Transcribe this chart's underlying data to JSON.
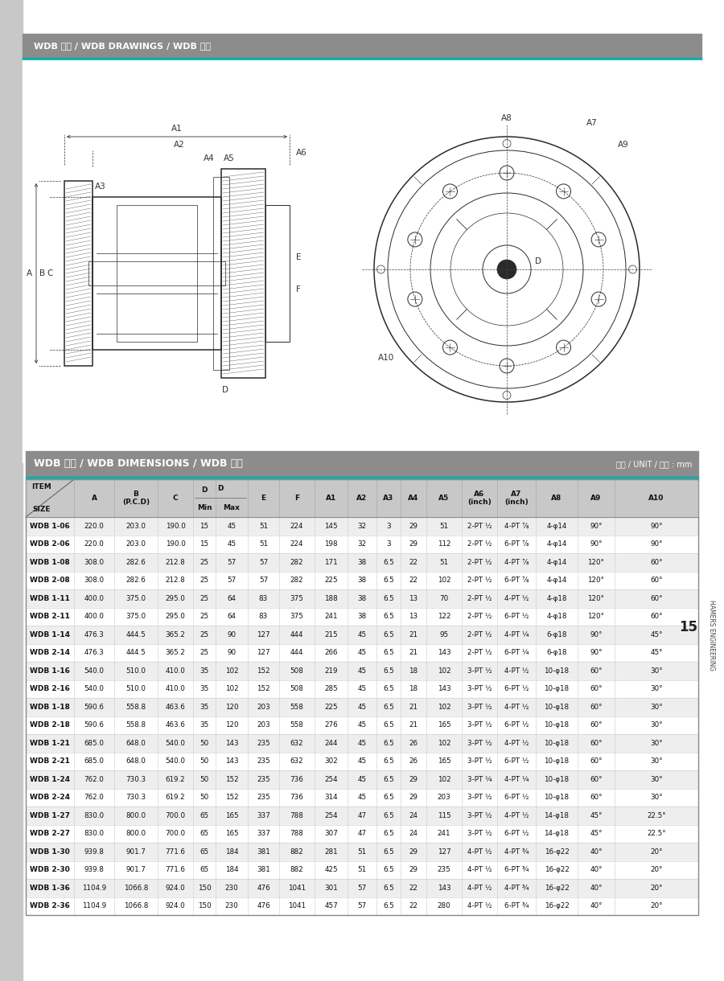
{
  "title_drawing": "WDB 도면 / WDB DRAWINGS / WDB 图纸",
  "title_dim": "WDB 치수 / WDB DIMENSIONS / WDB 尺寸",
  "unit_text": "단위 / UNIT / 单位 : mm",
  "page_num": "15",
  "side_text": "HAMERS ENGINEERING",
  "header_gray": "#8c8c8c",
  "teal_line": "#00b0a8",
  "table_header_bg": "#c8c8c8",
  "alt_row_bg": "#eeeeee",
  "white_row_bg": "#ffffff",
  "bg_color": "#ffffff",
  "left_stripe": "#d0d0d0",
  "rows": [
    [
      "WDB 1-06",
      "220.0",
      "203.0",
      "190.0",
      "15",
      "45",
      "51",
      "224",
      "145",
      "32",
      "3",
      "29",
      "51",
      "2-PT ½",
      "4-PT ⅞",
      "4-φ14",
      "90°",
      "90°"
    ],
    [
      "WDB 2-06",
      "220.0",
      "203.0",
      "190.0",
      "15",
      "45",
      "51",
      "224",
      "198",
      "32",
      "3",
      "29",
      "112",
      "2-PT ½",
      "6-PT ⅞",
      "4-φ14",
      "90°",
      "90°"
    ],
    [
      "WDB 1-08",
      "308.0",
      "282.6",
      "212.8",
      "25",
      "57",
      "57",
      "282",
      "171",
      "38",
      "6.5",
      "22",
      "51",
      "2-PT ½",
      "4-PT ⅞",
      "4-φ14",
      "120°",
      "60°"
    ],
    [
      "WDB 2-08",
      "308.0",
      "282.6",
      "212.8",
      "25",
      "57",
      "57",
      "282",
      "225",
      "38",
      "6.5",
      "22",
      "102",
      "2-PT ½",
      "6-PT ⅞",
      "4-φ14",
      "120°",
      "60°"
    ],
    [
      "WDB 1-11",
      "400.0",
      "375.0",
      "295.0",
      "25",
      "64",
      "83",
      "375",
      "188",
      "38",
      "6.5",
      "13",
      "70",
      "2-PT ½",
      "4-PT ½",
      "4-φ18",
      "120°",
      "60°"
    ],
    [
      "WDB 2-11",
      "400.0",
      "375.0",
      "295.0",
      "25",
      "64",
      "83",
      "375",
      "241",
      "38",
      "6.5",
      "13",
      "122",
      "2-PT ½",
      "6-PT ½",
      "4-φ18",
      "120°",
      "60°"
    ],
    [
      "WDB 1-14",
      "476.3",
      "444.5",
      "365.2",
      "25",
      "90",
      "127",
      "444",
      "215",
      "45",
      "6.5",
      "21",
      "95",
      "2-PT ½",
      "4-PT ¼",
      "6-φ18",
      "90°",
      "45°"
    ],
    [
      "WDB 2-14",
      "476.3",
      "444.5",
      "365.2",
      "25",
      "90",
      "127",
      "444",
      "266",
      "45",
      "6.5",
      "21",
      "143",
      "2-PT ½",
      "6-PT ¼",
      "6-φ18",
      "90°",
      "45°"
    ],
    [
      "WDB 1-16",
      "540.0",
      "510.0",
      "410.0",
      "35",
      "102",
      "152",
      "508",
      "219",
      "45",
      "6.5",
      "18",
      "102",
      "3-PT ½",
      "4-PT ½",
      "10-φ18",
      "60°",
      "30°"
    ],
    [
      "WDB 2-16",
      "540.0",
      "510.0",
      "410.0",
      "35",
      "102",
      "152",
      "508",
      "285",
      "45",
      "6.5",
      "18",
      "143",
      "3-PT ½",
      "6-PT ½",
      "10-φ18",
      "60°",
      "30°"
    ],
    [
      "WDB 1-18",
      "590.6",
      "558.8",
      "463.6",
      "35",
      "120",
      "203",
      "558",
      "225",
      "45",
      "6.5",
      "21",
      "102",
      "3-PT ½",
      "4-PT ½",
      "10-φ18",
      "60°",
      "30°"
    ],
    [
      "WDB 2-18",
      "590.6",
      "558.8",
      "463.6",
      "35",
      "120",
      "203",
      "558",
      "276",
      "45",
      "6.5",
      "21",
      "165",
      "3-PT ½",
      "6-PT ½",
      "10-φ18",
      "60°",
      "30°"
    ],
    [
      "WDB 1-21",
      "685.0",
      "648.0",
      "540.0",
      "50",
      "143",
      "235",
      "632",
      "244",
      "45",
      "6.5",
      "26",
      "102",
      "3-PT ½",
      "4-PT ½",
      "10-φ18",
      "60°",
      "30°"
    ],
    [
      "WDB 2-21",
      "685.0",
      "648.0",
      "540.0",
      "50",
      "143",
      "235",
      "632",
      "302",
      "45",
      "6.5",
      "26",
      "165",
      "3-PT ½",
      "6-PT ½",
      "10-φ18",
      "60°",
      "30°"
    ],
    [
      "WDB 1-24",
      "762.0",
      "730.3",
      "619.2",
      "50",
      "152",
      "235",
      "736",
      "254",
      "45",
      "6.5",
      "29",
      "102",
      "3-PT ¼",
      "4-PT ¼",
      "10-φ18",
      "60°",
      "30°"
    ],
    [
      "WDB 2-24",
      "762.0",
      "730.3",
      "619.2",
      "50",
      "152",
      "235",
      "736",
      "314",
      "45",
      "6.5",
      "29",
      "203",
      "3-PT ½",
      "6-PT ½",
      "10-φ18",
      "60°",
      "30°"
    ],
    [
      "WDB 1-27",
      "830.0",
      "800.0",
      "700.0",
      "65",
      "165",
      "337",
      "788",
      "254",
      "47",
      "6.5",
      "24",
      "115",
      "3-PT ½",
      "4-PT ½",
      "14-φ18",
      "45°",
      "22.5°"
    ],
    [
      "WDB 2-27",
      "830.0",
      "800.0",
      "700.0",
      "65",
      "165",
      "337",
      "788",
      "307",
      "47",
      "6.5",
      "24",
      "241",
      "3-PT ½",
      "6-PT ½",
      "14-φ18",
      "45°",
      "22.5°"
    ],
    [
      "WDB 1-30",
      "939.8",
      "901.7",
      "771.6",
      "65",
      "184",
      "381",
      "882",
      "281",
      "51",
      "6.5",
      "29",
      "127",
      "4-PT ½",
      "4-PT ¾",
      "16-φ22",
      "40°",
      "20°"
    ],
    [
      "WDB 2-30",
      "939.8",
      "901.7",
      "771.6",
      "65",
      "184",
      "381",
      "882",
      "425",
      "51",
      "6.5",
      "29",
      "235",
      "4-PT ½",
      "6-PT ¾",
      "16-φ22",
      "40°",
      "20°"
    ],
    [
      "WDB 1-36",
      "1104.9",
      "1066.8",
      "924.0",
      "150",
      "230",
      "476",
      "1041",
      "301",
      "57",
      "6.5",
      "22",
      "143",
      "4-PT ½",
      "4-PT ¾",
      "16-φ22",
      "40°",
      "20°"
    ],
    [
      "WDB 2-36",
      "1104.9",
      "1066.8",
      "924.0",
      "150",
      "230",
      "476",
      "1041",
      "457",
      "57",
      "6.5",
      "22",
      "280",
      "4-PT ½",
      "6-PT ¾",
      "16-φ22",
      "40°",
      "20°"
    ]
  ]
}
